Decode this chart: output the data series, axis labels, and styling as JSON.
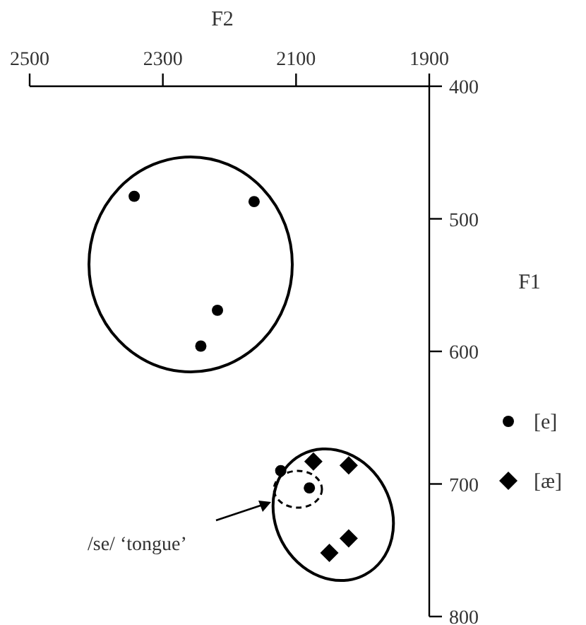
{
  "chart_data": {
    "type": "scatter",
    "xlabel": "F2",
    "ylabel": "F1",
    "xlim": [
      2500,
      1900
    ],
    "xticks": [
      2500,
      2300,
      2100,
      1900
    ],
    "ylim": [
      800,
      400
    ],
    "yticks": [
      400,
      500,
      600,
      700,
      800
    ],
    "legend": "right",
    "grid": false,
    "series": [
      {
        "name": "[e]",
        "color": "#000000",
        "marker": "circle",
        "x": [
          2343,
          2163,
          2218,
          2243,
          2123,
          2080
        ],
        "values": [
          483,
          487,
          569,
          596,
          690,
          703
        ]
      },
      {
        "name": "[æ]",
        "color": "#000000",
        "marker": "diamond",
        "x": [
          2074,
          2021,
          2021,
          2050
        ],
        "values": [
          683,
          686,
          741,
          752
        ]
      }
    ],
    "annotations": [
      "/se/ ‘tongue’"
    ]
  }
}
